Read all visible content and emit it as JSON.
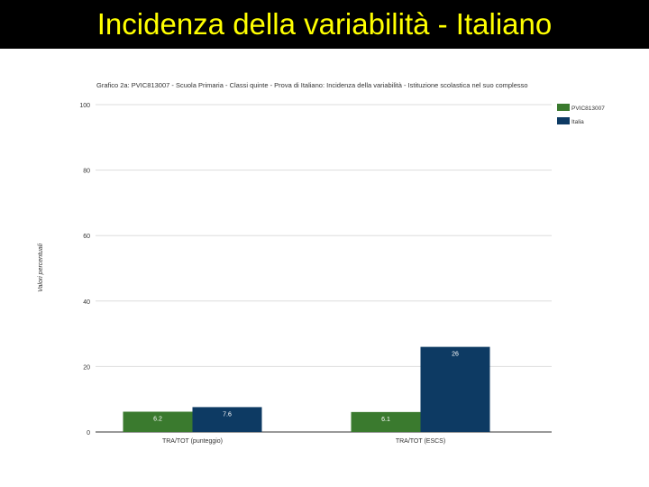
{
  "slide": {
    "title": "Incidenza della variabilità - Italiano"
  },
  "chart_data": {
    "type": "bar",
    "title": "Grafico 2a: PVIC813007 - Scuola Primaria - Classi quinte - Prova di Italiano: Incidenza della variabilità - Istituzione scolastica nel suo complesso",
    "ylabel": "Valori percentuali",
    "xlabel": "",
    "ylim": [
      0,
      100
    ],
    "yticks": [
      0,
      20,
      40,
      60,
      80,
      100
    ],
    "grid": true,
    "legend_position": "top-right",
    "categories": [
      "TRA/TOT (punteggio)",
      "TRA/TOT (ESCS)"
    ],
    "series": [
      {
        "name": "PVIC813007",
        "color": "#3a7a2e",
        "values": [
          6.2,
          6.1
        ],
        "labels": [
          "6.2",
          "6.1"
        ]
      },
      {
        "name": "Italia",
        "color": "#0d3a63",
        "values": [
          7.6,
          26
        ],
        "labels": [
          "7.6",
          "26"
        ]
      }
    ]
  }
}
